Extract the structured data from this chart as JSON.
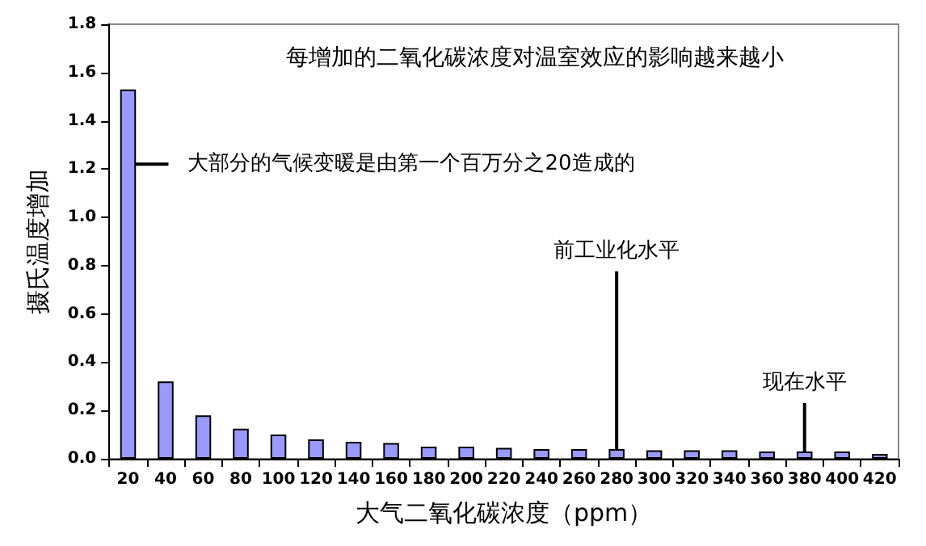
{
  "chart_data": {
    "type": "bar",
    "title": "每增加的二氧化碳浓度对温室效应的影响越来越小",
    "xlabel": "大气二氧化碳浓度（ppm）",
    "ylabel": "摄氏温度增加",
    "categories": [
      "20",
      "40",
      "60",
      "80",
      "100",
      "120",
      "140",
      "160",
      "180",
      "200",
      "220",
      "240",
      "260",
      "280",
      "300",
      "320",
      "340",
      "360",
      "380",
      "400",
      "420"
    ],
    "values": [
      1.53,
      0.32,
      0.18,
      0.125,
      0.1,
      0.08,
      0.07,
      0.065,
      0.05,
      0.05,
      0.045,
      0.04,
      0.04,
      0.04,
      0.035,
      0.035,
      0.035,
      0.03,
      0.03,
      0.03,
      0.02
    ],
    "color": "#9999ff",
    "ylim": [
      0,
      1.8
    ],
    "yticks": [
      {
        "value": 0,
        "label": "0.0"
      },
      {
        "value": 0.2,
        "label": "0.2"
      },
      {
        "value": 0.4,
        "label": "0.4"
      },
      {
        "value": 0.6,
        "label": "0.6"
      },
      {
        "value": 0.8,
        "label": "0.8"
      },
      {
        "value": 1,
        "label": "1.0"
      },
      {
        "value": 1.2,
        "label": "1.2"
      },
      {
        "value": 1.4,
        "label": "1.4"
      },
      {
        "value": 1.6,
        "label": "1.6"
      },
      {
        "value": 1.8,
        "label": "1.8"
      }
    ],
    "grid": false,
    "annotations": [
      {
        "text": "大部分的气候变暖是由第一个百万分之20造成的",
        "x": "20",
        "y": 1.22
      },
      {
        "text": "前工业化水平",
        "x": "280",
        "y": 0.04
      },
      {
        "text": "现在水平",
        "x": "380",
        "y": 0.03
      }
    ]
  }
}
